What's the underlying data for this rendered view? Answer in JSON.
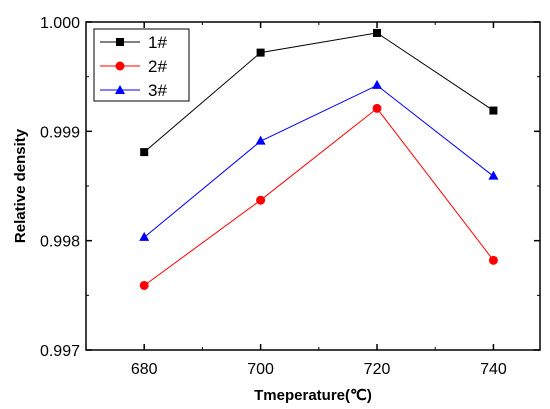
{
  "chart_data": {
    "type": "line",
    "title": "",
    "xlabel": "Tmeperature(℃)",
    "ylabel": "Relative density",
    "x": [
      680,
      700,
      720,
      740
    ],
    "x_ticks": [
      "680",
      "700",
      "720",
      "740"
    ],
    "xlim": [
      670,
      748
    ],
    "y_ticks": [
      "0.997",
      "0.998",
      "0.999",
      "1.000"
    ],
    "ylim": [
      0.997,
      1.0
    ],
    "grid": false,
    "legend_position": "top-left",
    "series": [
      {
        "name": "1#",
        "color": "#000000",
        "marker": "square",
        "values": [
          0.99881,
          0.99972,
          0.9999,
          0.99919
        ]
      },
      {
        "name": "2#",
        "color": "#ff0000",
        "marker": "circle",
        "values": [
          0.99759,
          0.99837,
          0.99921,
          0.99782
        ]
      },
      {
        "name": "3#",
        "color": "#0000ff",
        "marker": "triangle",
        "values": [
          0.99803,
          0.99891,
          0.99942,
          0.99859
        ]
      }
    ]
  }
}
